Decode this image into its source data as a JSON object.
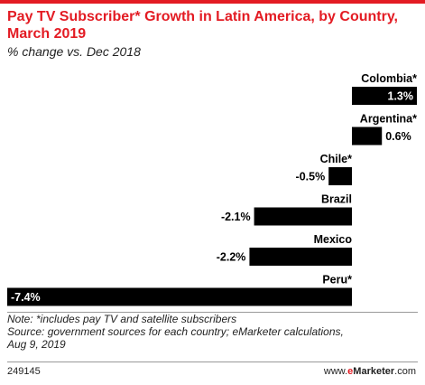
{
  "header": {
    "title": "Pay TV Subscriber* Growth in Latin America, by Country, March 2019",
    "subtitle": "% change vs. Dec 2018"
  },
  "chart_data": {
    "type": "bar",
    "orientation": "horizontal",
    "title": "Pay TV Subscriber* Growth in Latin America, by Country, March 2019",
    "subtitle": "% change vs. Dec 2018",
    "categories": [
      "Colombia*",
      "Argentina*",
      "Chile*",
      "Brazil",
      "Mexico",
      "Peru*"
    ],
    "values": [
      1.3,
      0.6,
      -0.5,
      -2.1,
      -2.2,
      -7.4
    ],
    "value_labels": [
      "1.3%",
      "0.6%",
      "-0.5%",
      "-2.1%",
      "-2.2%",
      "-7.4%"
    ],
    "xlim": [
      -7.4,
      1.3
    ],
    "bar_color": "#000000",
    "grid": false,
    "legend": "none"
  },
  "footer": {
    "note": "Note: *includes pay TV and satellite subscribers",
    "source_line1": "Source: government sources for each country; eMarketer calculations,",
    "source_line2": "Aug 9, 2019",
    "chart_id": "249145",
    "brand_prefix": "www.",
    "brand_e": "e",
    "brand_name": "Marketer",
    "brand_suffix": ".com"
  },
  "colors": {
    "accent": "#e31b23",
    "bar": "#000000",
    "label_on_bar": "#ffffff"
  }
}
